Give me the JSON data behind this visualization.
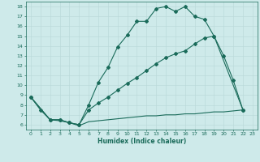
{
  "xlabel": "Humidex (Indice chaleur)",
  "bg_color": "#ceeaea",
  "line_color": "#1a6b5a",
  "grid_color": "#b8d8d8",
  "xlim": [
    -0.5,
    23.5
  ],
  "ylim": [
    5.5,
    18.5
  ],
  "xticks": [
    0,
    1,
    2,
    3,
    4,
    5,
    6,
    7,
    8,
    9,
    10,
    11,
    12,
    13,
    14,
    15,
    16,
    17,
    18,
    19,
    20,
    21,
    22,
    23
  ],
  "yticks": [
    6,
    7,
    8,
    9,
    10,
    11,
    12,
    13,
    14,
    15,
    16,
    17,
    18
  ],
  "line1_x": [
    0,
    1,
    2,
    3,
    4,
    5,
    6,
    7,
    8,
    9,
    10,
    11,
    12,
    13,
    14,
    15,
    16,
    17,
    18,
    19,
    20,
    21,
    22
  ],
  "line1_y": [
    8.8,
    7.5,
    6.5,
    6.5,
    6.2,
    6.0,
    8.0,
    10.3,
    11.8,
    13.9,
    15.1,
    16.5,
    16.5,
    17.8,
    18.0,
    17.5,
    18.0,
    17.0,
    16.7,
    15.0,
    13.0,
    10.5,
    7.5
  ],
  "line2_x": [
    0,
    2,
    3,
    4,
    5,
    6,
    7,
    8,
    9,
    10,
    11,
    12,
    13,
    14,
    15,
    16,
    17,
    18,
    19,
    22
  ],
  "line2_y": [
    8.8,
    6.5,
    6.5,
    6.2,
    6.0,
    7.5,
    8.2,
    8.8,
    9.5,
    10.2,
    10.8,
    11.5,
    12.2,
    12.8,
    13.2,
    13.5,
    14.2,
    14.8,
    15.0,
    7.5
  ],
  "line3_x": [
    0,
    2,
    3,
    4,
    5,
    6,
    7,
    8,
    9,
    10,
    11,
    12,
    13,
    14,
    15,
    16,
    17,
    18,
    19,
    20,
    21,
    22
  ],
  "line3_y": [
    8.8,
    6.5,
    6.4,
    6.2,
    5.9,
    6.3,
    6.4,
    6.5,
    6.6,
    6.7,
    6.8,
    6.9,
    6.9,
    7.0,
    7.0,
    7.1,
    7.1,
    7.2,
    7.3,
    7.3,
    7.4,
    7.5
  ]
}
